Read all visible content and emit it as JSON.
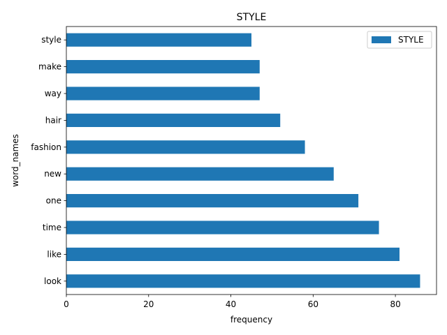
{
  "chart_data": {
    "type": "bar",
    "orientation": "horizontal",
    "title": "STYLE",
    "xlabel": "frequency",
    "ylabel": "word_names",
    "categories": [
      "look",
      "like",
      "time",
      "one",
      "new",
      "fashion",
      "hair",
      "way",
      "make",
      "style"
    ],
    "series": [
      {
        "name": "STYLE",
        "color": "#1f77b4",
        "values": [
          86,
          81,
          76,
          71,
          65,
          58,
          52,
          47,
          47,
          45
        ]
      }
    ],
    "xlim": [
      0,
      90
    ],
    "xticks": [
      0,
      20,
      40,
      60,
      80
    ],
    "grid": false,
    "legend_position": "top-right"
  }
}
